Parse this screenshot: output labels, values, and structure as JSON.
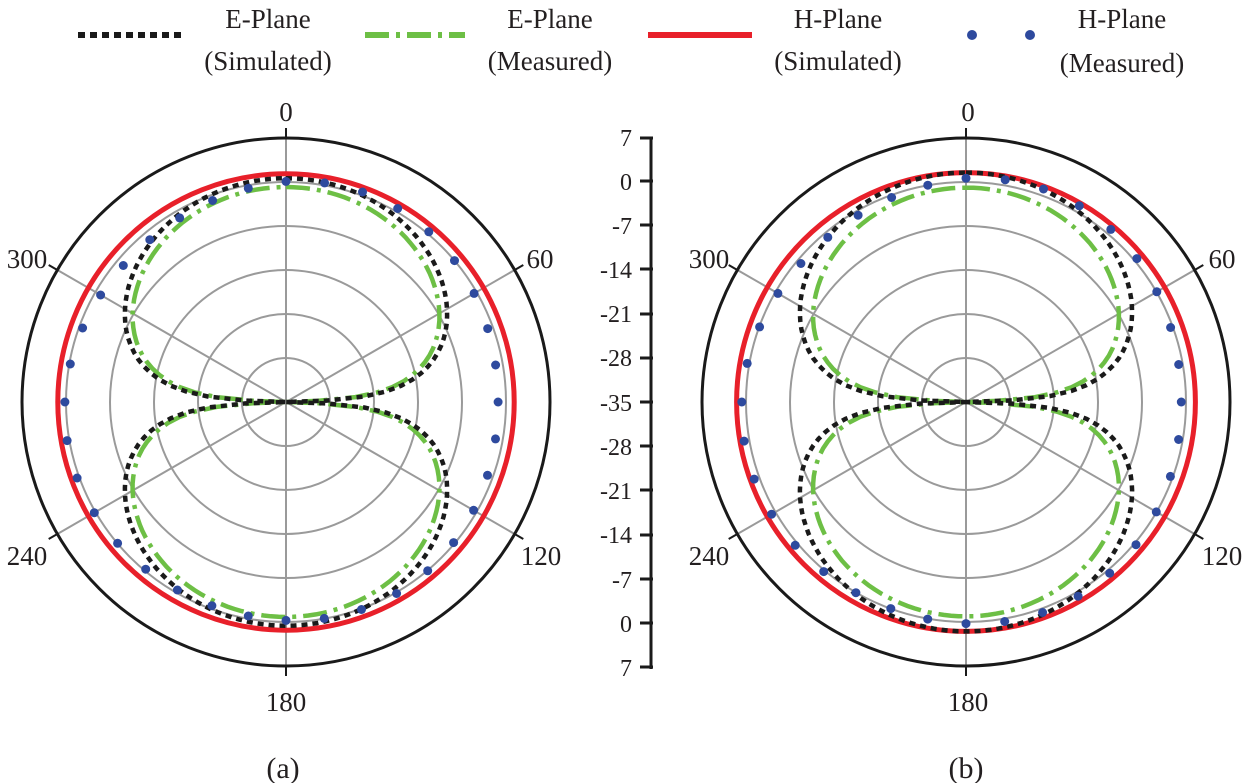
{
  "chart_data": {
    "type": "polar",
    "legend": [
      {
        "key": "e_sim",
        "line1": "E-Plane",
        "line2": "(Simulated)",
        "color": "#1a1a1a",
        "style": "dotted"
      },
      {
        "key": "e_meas",
        "line1": "E-Plane",
        "line2": "(Measured)",
        "color": "#6dbf45",
        "style": "dash-dot"
      },
      {
        "key": "h_sim",
        "line1": "H-Plane",
        "line2": "(Simulated)",
        "color": "#e8202a",
        "style": "solid"
      },
      {
        "key": "h_meas",
        "line1": "H-Plane",
        "line2": "(Measured)",
        "color": "#2e4a9e",
        "style": "markers"
      }
    ],
    "angle_labels": [
      "0",
      "60",
      "120",
      "180",
      "240",
      "300"
    ],
    "radial_axis": {
      "min": -35,
      "max": 7,
      "ticks_upper": [
        "7",
        "0",
        "-7",
        "-14",
        "-21",
        "-28",
        "-35"
      ],
      "ticks_lower": [
        "-28",
        "-21",
        "-14",
        "-7",
        "0",
        "7"
      ]
    },
    "panels": [
      {
        "label": "(a)",
        "series": [
          {
            "name": "E-Plane (Simulated)",
            "shape": "figure8",
            "peak_db": 0.6,
            "floor_db": -35
          },
          {
            "name": "E-Plane (Measured)",
            "shape": "figure8",
            "peak_db": -0.8,
            "floor_db": -35
          },
          {
            "name": "H-Plane (Simulated)",
            "shape": "omni",
            "level_db": 1.3
          },
          {
            "name": "H-Plane (Measured)",
            "shape": "omni_markers",
            "level_db": -0.3,
            "marker_step_deg": 10
          }
        ]
      },
      {
        "label": "(b)",
        "series": [
          {
            "name": "E-Plane (Simulated)",
            "shape": "figure8",
            "peak_db": 1.5,
            "floor_db": -35
          },
          {
            "name": "E-Plane (Measured)",
            "shape": "figure8",
            "peak_db": -0.9,
            "floor_db": -35
          },
          {
            "name": "H-Plane (Simulated)",
            "shape": "omni",
            "level_db": 1.5
          },
          {
            "name": "H-Plane (Measured)",
            "shape": "omni_markers",
            "level_db": 0.2,
            "marker_step_deg": 10
          }
        ]
      }
    ]
  }
}
